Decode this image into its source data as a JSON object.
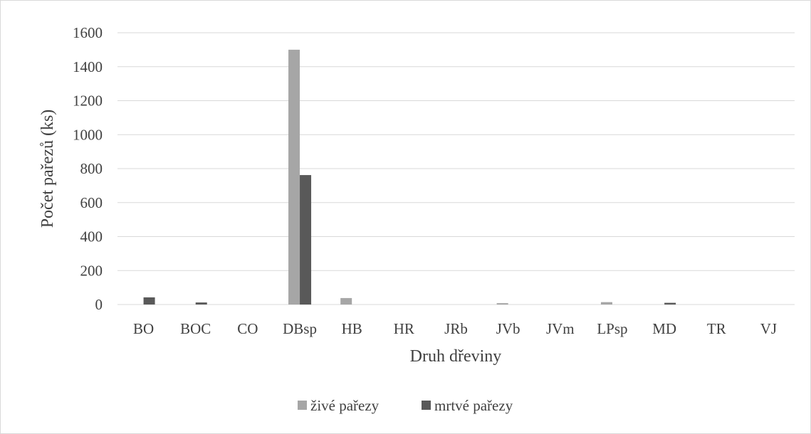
{
  "chart_data": {
    "type": "bar",
    "title": "",
    "xlabel": "Druh dřeviny",
    "ylabel": "Počet  pařezů (ks)",
    "ylim": [
      0,
      1600
    ],
    "yticks": [
      0,
      200,
      400,
      600,
      800,
      1000,
      1200,
      1400,
      1600
    ],
    "grid": true,
    "legend_position": "bottom",
    "categories": [
      "BO",
      "BOC",
      "CO",
      "DBsp",
      "HB",
      "HR",
      "JRb",
      "JVb",
      "JVm",
      "LPsp",
      "MD",
      "TR",
      "VJ"
    ],
    "series": [
      {
        "name": "živé pařezy",
        "color": "#a6a6a6",
        "values": [
          0,
          0,
          0,
          1500,
          38,
          0,
          0,
          8,
          0,
          14,
          0,
          0,
          0
        ]
      },
      {
        "name": "mrtvé pařezy",
        "color": "#595959",
        "values": [
          42,
          12,
          0,
          762,
          0,
          0,
          0,
          0,
          0,
          0,
          10,
          0,
          0
        ]
      }
    ]
  },
  "colors": {
    "grid": "#d9d9d9",
    "text": "#404040",
    "border": "#d9d9d9"
  }
}
